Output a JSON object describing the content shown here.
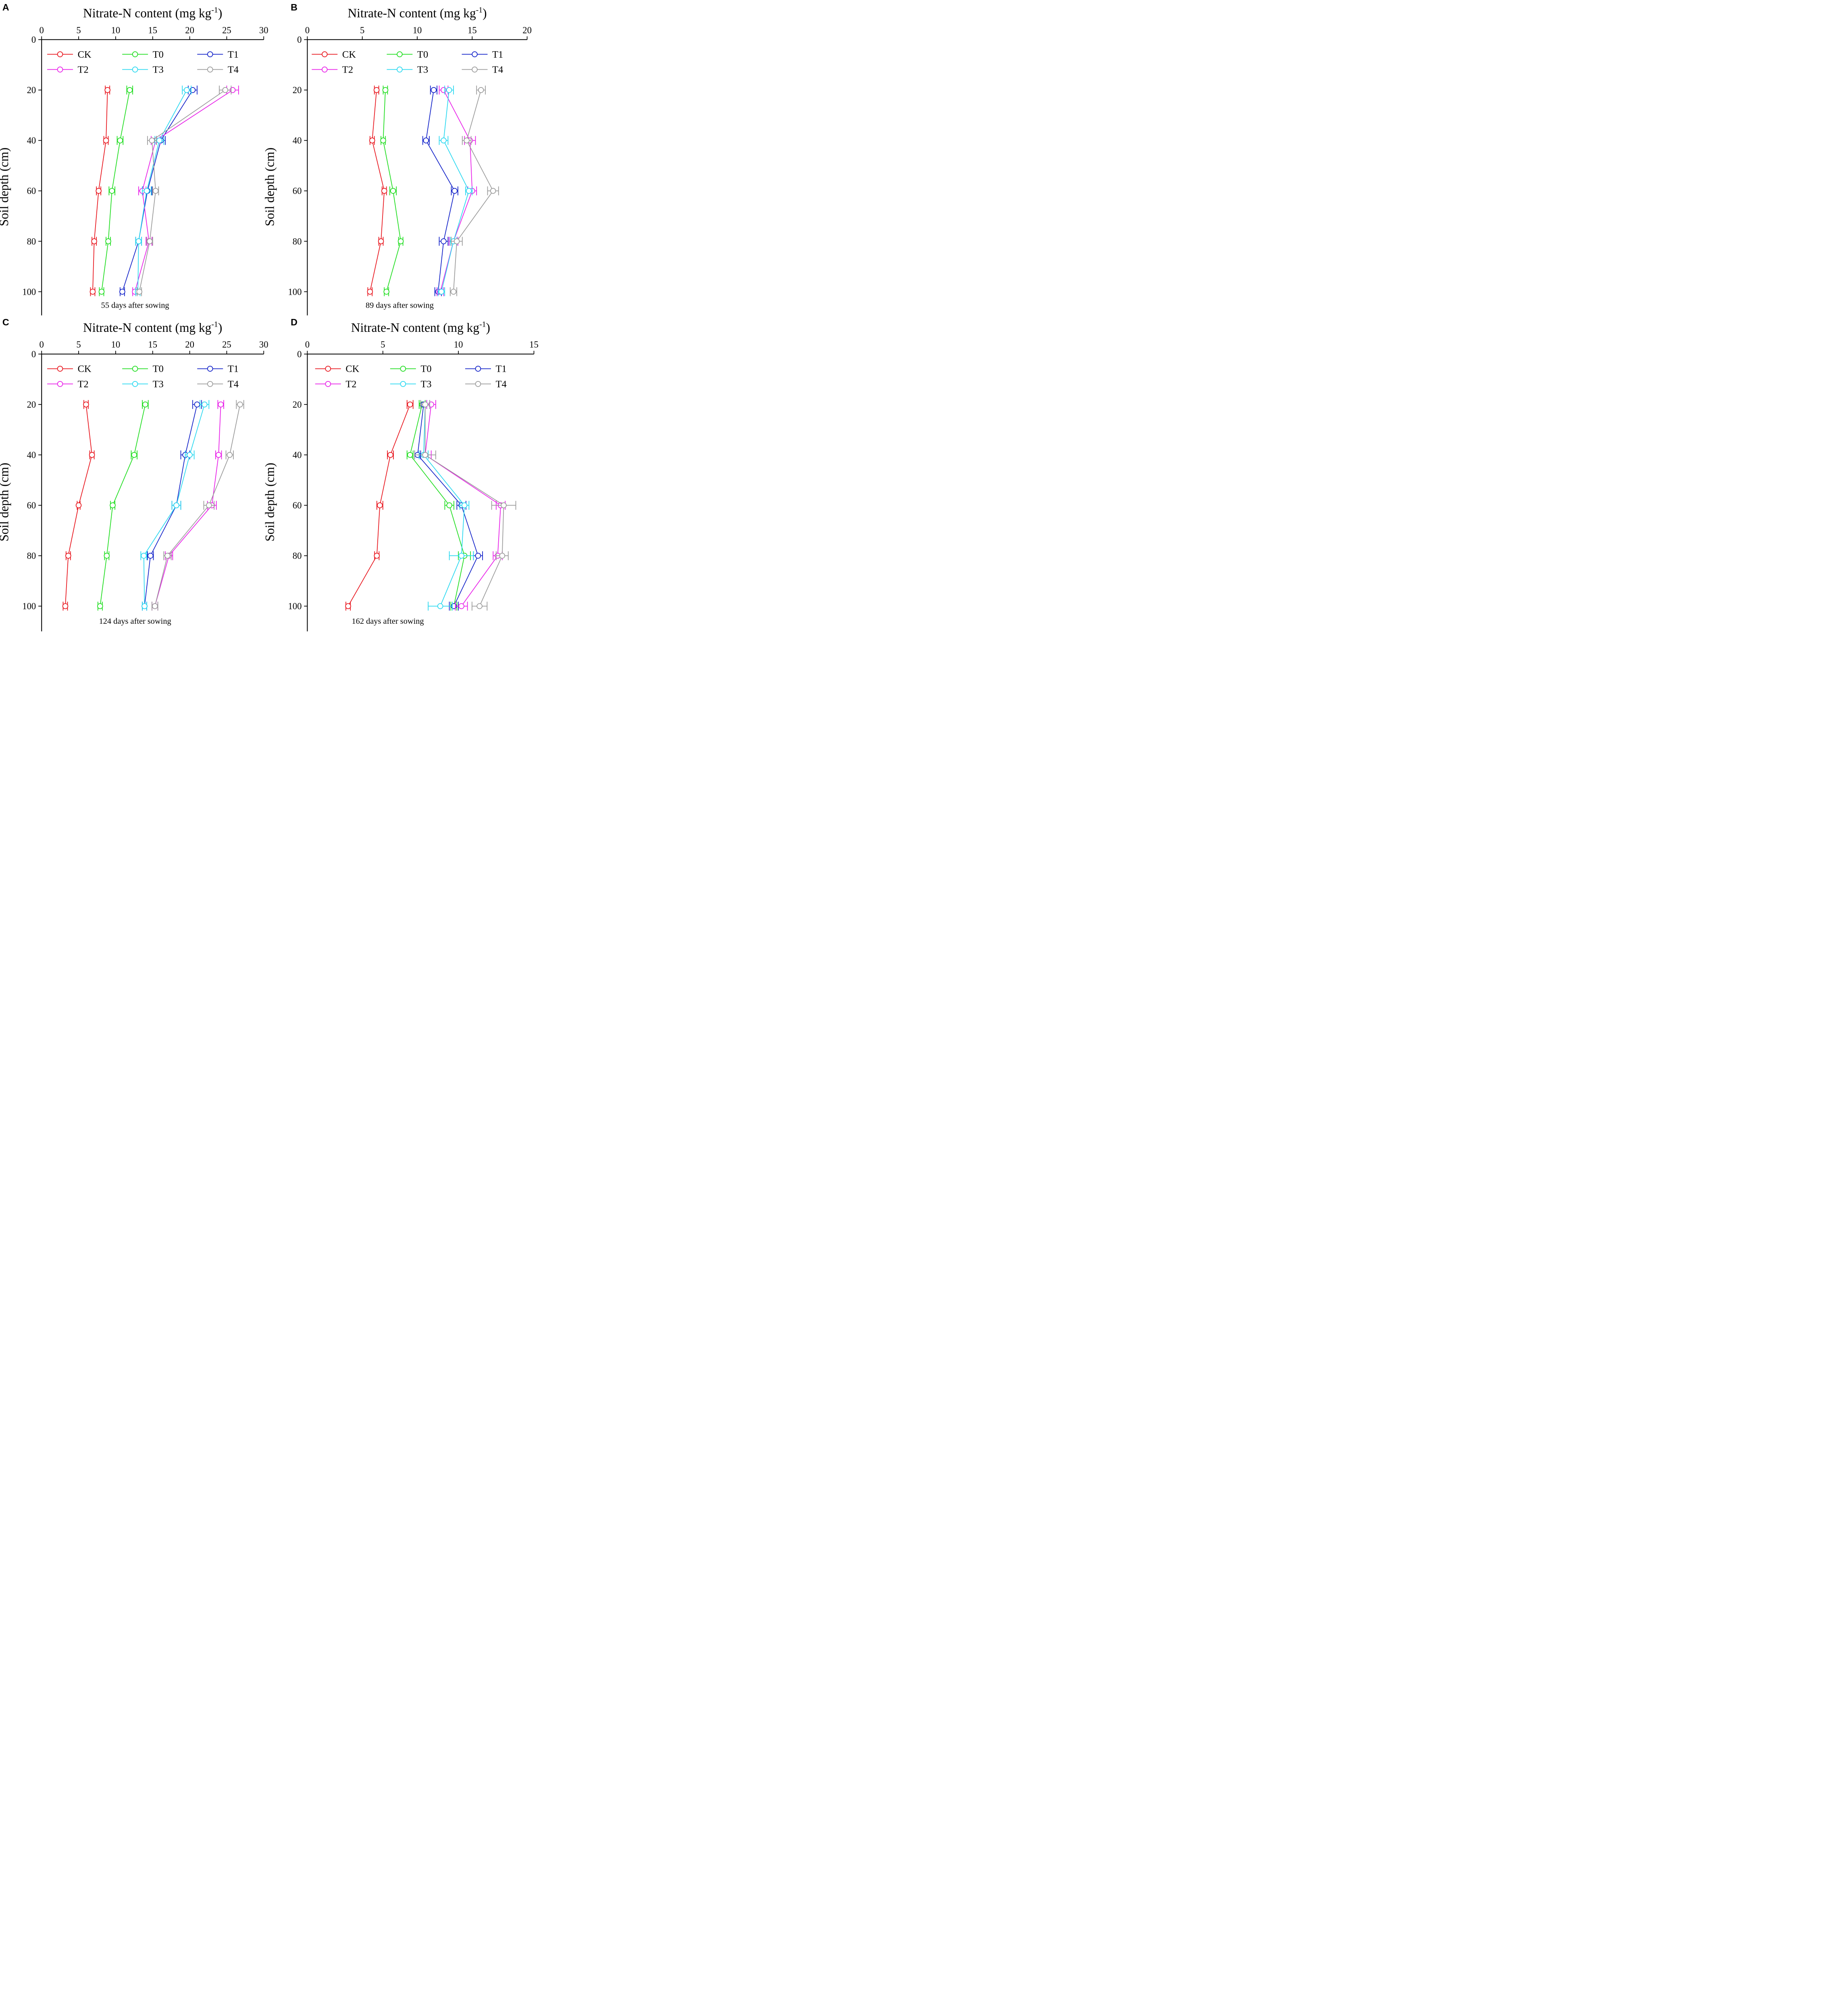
{
  "chart_data": [
    {
      "type": "line",
      "panel_label": "A",
      "title": "Nitrate-N content (mg kg",
      "title_sup": "-1",
      "title_close": ")",
      "ylabel": "Soil depth (cm)",
      "caption": "55 days after sowing",
      "xlim": [
        0,
        30
      ],
      "ylim": [
        0,
        110
      ],
      "xticks": [
        "0",
        "5",
        "10",
        "15",
        "20",
        "25",
        "30"
      ],
      "yticks": [
        "0",
        "20",
        "40",
        "60",
        "80",
        "100"
      ],
      "legend_position": "top",
      "depth": [
        20,
        40,
        60,
        80,
        100
      ],
      "series": [
        {
          "name": "CK",
          "color": "#e8141c",
          "values": [
            8.9,
            8.7,
            7.7,
            7.1,
            6.9
          ],
          "errors": [
            0.3,
            0.3,
            0.3,
            0.3,
            0.3
          ]
        },
        {
          "name": "T0",
          "color": "#1edd1e",
          "values": [
            11.9,
            10.6,
            9.5,
            9.0,
            8.1
          ],
          "errors": [
            0.4,
            0.4,
            0.4,
            0.3,
            0.3
          ]
        },
        {
          "name": "T1",
          "color": "#1020c8",
          "values": [
            20.4,
            16.1,
            14.3,
            13.1,
            10.9
          ],
          "errors": [
            0.6,
            0.6,
            0.6,
            0.4,
            0.3
          ]
        },
        {
          "name": "T2",
          "color": "#e81ee8",
          "values": [
            25.8,
            15.4,
            13.6,
            14.5,
            12.6
          ],
          "errors": [
            0.8,
            0.6,
            0.5,
            0.4,
            0.3
          ]
        },
        {
          "name": "T3",
          "color": "#28d8f0",
          "values": [
            19.6,
            15.9,
            14.2,
            13.1,
            13.0
          ],
          "errors": [
            0.6,
            0.6,
            0.6,
            0.4,
            0.3
          ]
        },
        {
          "name": "T4",
          "color": "#9a9a9a",
          "values": [
            24.8,
            14.9,
            15.4,
            14.6,
            13.2
          ],
          "errors": [
            0.8,
            0.6,
            0.4,
            0.4,
            0.3
          ]
        }
      ]
    },
    {
      "type": "line",
      "panel_label": "B",
      "title": "Nitrate-N content (mg kg",
      "title_sup": "-1",
      "title_close": ")",
      "ylabel": "Soil depth (cm)",
      "caption": "89 days after sowing",
      "xlim": [
        0,
        20
      ],
      "ylim": [
        0,
        110
      ],
      "xticks": [
        "0",
        "5",
        "10",
        "15",
        "20"
      ],
      "yticks": [
        "0",
        "20",
        "40",
        "60",
        "80",
        "100"
      ],
      "legend_position": "top",
      "depth": [
        20,
        40,
        60,
        80,
        100
      ],
      "series": [
        {
          "name": "CK",
          "color": "#e8141c",
          "values": [
            6.3,
            5.9,
            7.0,
            6.7,
            5.7
          ],
          "errors": [
            0.2,
            0.2,
            0.2,
            0.2,
            0.2
          ]
        },
        {
          "name": "T0",
          "color": "#1edd1e",
          "values": [
            7.1,
            6.9,
            7.8,
            8.5,
            7.2
          ],
          "errors": [
            0.2,
            0.2,
            0.3,
            0.2,
            0.2
          ]
        },
        {
          "name": "T1",
          "color": "#1020c8",
          "values": [
            11.5,
            10.8,
            13.4,
            12.4,
            11.9
          ],
          "errors": [
            0.3,
            0.3,
            0.3,
            0.4,
            0.3
          ]
        },
        {
          "name": "T2",
          "color": "#e81ee8",
          "values": [
            12.4,
            14.8,
            15.0,
            13.3,
            12.1
          ],
          "errors": [
            0.4,
            0.5,
            0.4,
            0.4,
            0.3
          ]
        },
        {
          "name": "T3",
          "color": "#28d8f0",
          "values": [
            12.9,
            12.4,
            14.7,
            13.3,
            12.2
          ],
          "errors": [
            0.4,
            0.4,
            0.3,
            0.3,
            0.3
          ]
        },
        {
          "name": "T4",
          "color": "#9a9a9a",
          "values": [
            15.8,
            14.5,
            16.9,
            13.6,
            13.3
          ],
          "errors": [
            0.4,
            0.4,
            0.5,
            0.5,
            0.3
          ]
        }
      ]
    },
    {
      "type": "line",
      "panel_label": "C",
      "title": "Nitrate-N content (mg kg",
      "title_sup": "-1",
      "title_close": ")",
      "ylabel": "Soil depth (cm)",
      "caption": "124 days after sowing",
      "xlim": [
        0,
        30
      ],
      "ylim": [
        0,
        110
      ],
      "xticks": [
        "0",
        "5",
        "10",
        "15",
        "20",
        "25",
        "30"
      ],
      "yticks": [
        "0",
        "20",
        "40",
        "60",
        "80",
        "100"
      ],
      "legend_position": "top",
      "depth": [
        20,
        40,
        60,
        80,
        100
      ],
      "series": [
        {
          "name": "CK",
          "color": "#e8141c",
          "values": [
            6.0,
            6.8,
            5.0,
            3.6,
            3.2
          ],
          "errors": [
            0.3,
            0.3,
            0.2,
            0.3,
            0.3
          ]
        },
        {
          "name": "T0",
          "color": "#1edd1e",
          "values": [
            14.0,
            12.5,
            9.6,
            8.8,
            7.9
          ],
          "errors": [
            0.4,
            0.4,
            0.3,
            0.3,
            0.3
          ]
        },
        {
          "name": "T1",
          "color": "#1020c8",
          "values": [
            21.0,
            19.4,
            18.2,
            14.7,
            13.9
          ],
          "errors": [
            0.6,
            0.6,
            0.6,
            0.4,
            0.3
          ]
        },
        {
          "name": "T2",
          "color": "#e81ee8",
          "values": [
            24.2,
            23.9,
            23.0,
            17.2,
            15.3
          ],
          "errors": [
            0.4,
            0.4,
            0.6,
            0.5,
            0.4
          ]
        },
        {
          "name": "T3",
          "color": "#28d8f0",
          "values": [
            22.0,
            20.0,
            18.2,
            13.8,
            13.9
          ],
          "errors": [
            0.6,
            0.6,
            0.6,
            0.4,
            0.3
          ]
        },
        {
          "name": "T4",
          "color": "#9a9a9a",
          "values": [
            26.8,
            25.4,
            22.6,
            17.0,
            15.3
          ],
          "errors": [
            0.5,
            0.5,
            0.7,
            0.5,
            0.4
          ]
        }
      ]
    },
    {
      "type": "line",
      "panel_label": "D",
      "title": "Nitrate-N content (mg kg",
      "title_sup": "-1",
      "title_close": ")",
      "ylabel": "Soil depth (cm)",
      "caption": "162 days after sowing",
      "xlim": [
        0,
        15
      ],
      "ylim": [
        0,
        110
      ],
      "xticks": [
        "0",
        "5",
        "10",
        "15"
      ],
      "yticks": [
        "0",
        "20",
        "40",
        "60",
        "80",
        "100"
      ],
      "legend_position": "top",
      "depth": [
        20,
        40,
        60,
        80,
        100
      ],
      "series": [
        {
          "name": "CK",
          "color": "#e8141c",
          "values": [
            6.8,
            5.5,
            4.8,
            4.6,
            2.7
          ],
          "errors": [
            0.2,
            0.2,
            0.2,
            0.15,
            0.15
          ]
        },
        {
          "name": "T0",
          "color": "#1edd1e",
          "values": [
            7.6,
            6.8,
            9.4,
            10.4,
            9.7
          ],
          "errors": [
            0.2,
            0.2,
            0.3,
            0.4,
            0.2
          ]
        },
        {
          "name": "T1",
          "color": "#1020c8",
          "values": [
            7.7,
            7.3,
            10.2,
            11.3,
            9.7
          ],
          "errors": [
            0.2,
            0.2,
            0.3,
            0.3,
            0.3
          ]
        },
        {
          "name": "T2",
          "color": "#e81ee8",
          "values": [
            8.2,
            7.8,
            12.8,
            12.6,
            10.2
          ],
          "errors": [
            0.3,
            0.4,
            0.3,
            0.3,
            0.4
          ]
        },
        {
          "name": "T3",
          "color": "#28d8f0",
          "values": [
            7.8,
            7.7,
            10.4,
            10.2,
            8.8
          ],
          "errors": [
            0.3,
            0.3,
            0.3,
            0.8,
            0.8
          ]
        },
        {
          "name": "T4",
          "color": "#9a9a9a",
          "values": [
            7.8,
            7.8,
            13.0,
            12.9,
            11.4
          ],
          "errors": [
            0.3,
            0.7,
            0.8,
            0.4,
            0.5
          ]
        }
      ]
    }
  ]
}
